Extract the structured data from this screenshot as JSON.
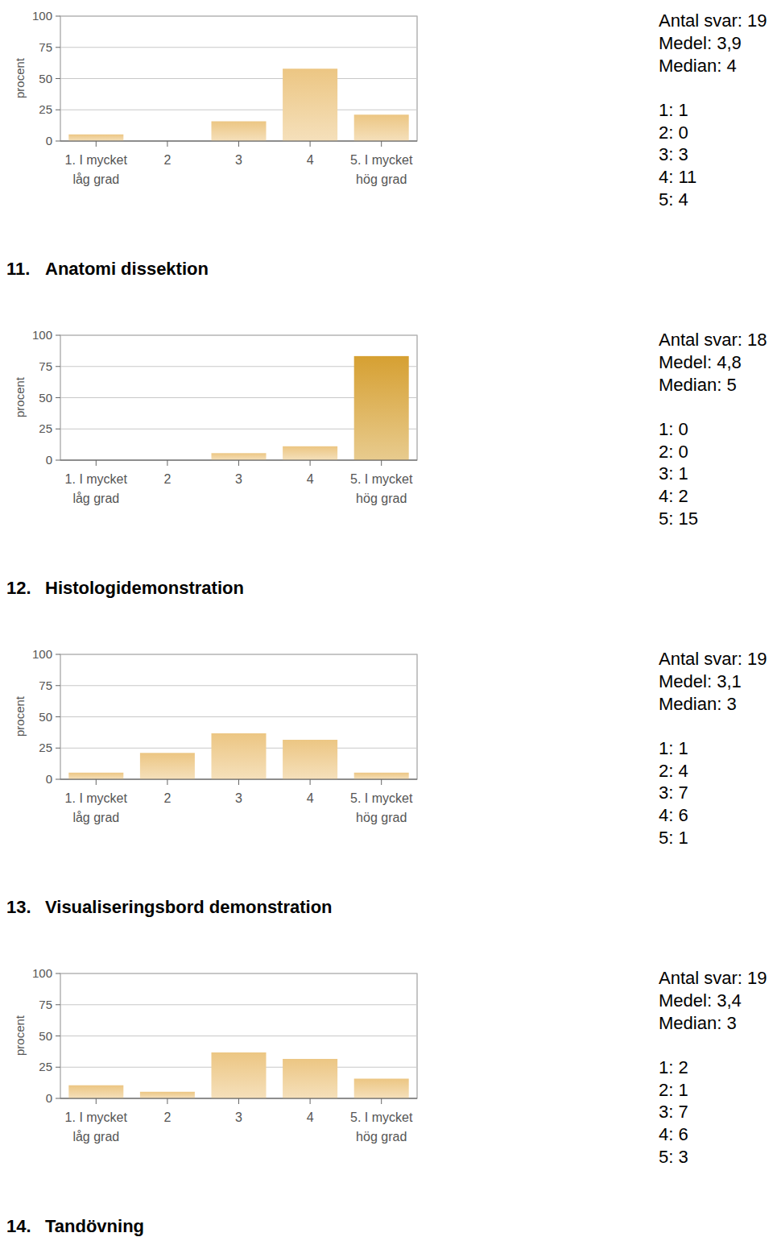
{
  "chart_data": [
    {
      "type": "bar",
      "y_label": "procent",
      "categories": [
        "1. I mycket låg grad",
        "2",
        "3",
        "4",
        "5. I mycket hög grad"
      ],
      "values": [
        5.3,
        0,
        15.8,
        57.9,
        21.1
      ],
      "color": "#ecc683",
      "ylim": [
        0,
        100
      ],
      "yticks": [
        0,
        25,
        50,
        75,
        100
      ],
      "grid": true
    },
    {
      "type": "bar",
      "y_label": "procent",
      "categories": [
        "1. I mycket låg grad",
        "2",
        "3",
        "4",
        "5. I mycket hög grad"
      ],
      "values": [
        0,
        0,
        5.6,
        11.1,
        83.3
      ],
      "colors": [
        "#ecc683",
        "#ecc683",
        "#ecc683",
        "#ecc683",
        "#d6a032"
      ],
      "ylim": [
        0,
        100
      ],
      "yticks": [
        0,
        25,
        50,
        75,
        100
      ],
      "grid": true
    },
    {
      "type": "bar",
      "y_label": "procent",
      "categories": [
        "1. I mycket låg grad",
        "2",
        "3",
        "4",
        "5. I mycket hög grad"
      ],
      "values": [
        5.3,
        21.1,
        36.8,
        31.6,
        5.3
      ],
      "color": "#ecc683",
      "ylim": [
        0,
        100
      ],
      "yticks": [
        0,
        25,
        50,
        75,
        100
      ],
      "grid": true
    },
    {
      "type": "bar",
      "y_label": "procent",
      "categories": [
        "1. I mycket låg grad",
        "2",
        "3",
        "4",
        "5. I mycket hög grad"
      ],
      "values": [
        10.5,
        5.3,
        36.8,
        31.6,
        15.8
      ],
      "color": "#ecc683",
      "ylim": [
        0,
        100
      ],
      "yticks": [
        0,
        25,
        50,
        75,
        100
      ],
      "grid": true
    }
  ],
  "summary": [
    [
      "Antal svar: 19",
      "Medel: 3,9",
      "Median: 4"
    ],
    [
      "Antal svar: 18",
      "Medel: 4,8",
      "Median: 5"
    ],
    [
      "Antal svar: 19",
      "Medel: 3,1",
      "Median: 3"
    ],
    [
      "Antal svar: 19",
      "Medel: 3,4",
      "Median: 3"
    ]
  ],
  "counts": [
    [
      "1: 1",
      "2: 0",
      "3: 3",
      "4: 11",
      "5: 4"
    ],
    [
      "1: 0",
      "2: 0",
      "3: 1",
      "4: 2",
      "5: 15"
    ],
    [
      "1: 1",
      "2: 4",
      "3: 7",
      "4: 6",
      "5: 1"
    ],
    [
      "1: 2",
      "2: 1",
      "3: 7",
      "4: 6",
      "5: 3"
    ]
  ],
  "headings": [
    "11. Anatomi dissektion",
    "12. Histologidemonstration",
    "13. Visualiseringsbord demonstration",
    "14. Tandövning"
  ]
}
